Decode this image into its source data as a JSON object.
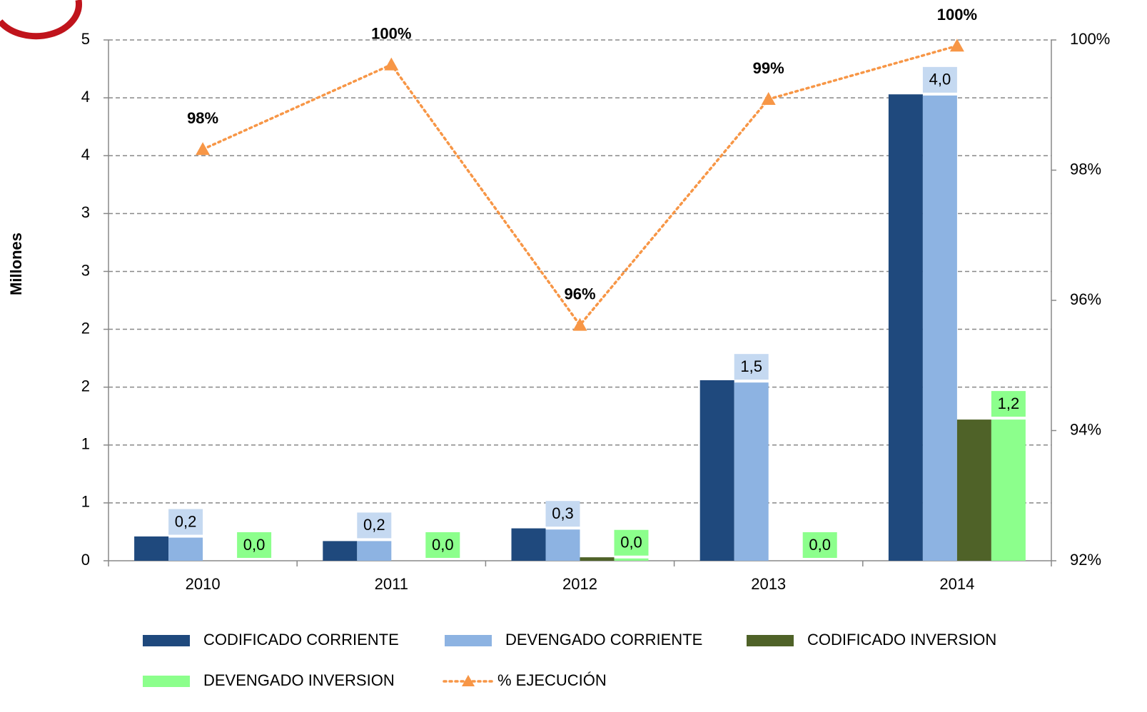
{
  "chart_data": {
    "type": "bar",
    "y_label": "Millones",
    "categories": [
      "2010",
      "2011",
      "2012",
      "2013",
      "2014"
    ],
    "series": [
      {
        "name": "CODIFICADO CORRIENTE",
        "color": "#1f497d",
        "values": [
          0.21,
          0.17,
          0.28,
          1.56,
          4.03
        ]
      },
      {
        "name": "DEVENGADO CORRIENTE",
        "color": "#8db3e2",
        "values": [
          0.2,
          0.17,
          0.27,
          1.54,
          4.02
        ],
        "value_labels": [
          "0,2",
          "0,2",
          "0,3",
          "1,5",
          "4,0"
        ],
        "label_color": "#c5d9f1"
      },
      {
        "name": "CODIFICADO INVERSION",
        "color": "#4f6228",
        "values": [
          0,
          0,
          0.03,
          0,
          1.22
        ]
      },
      {
        "name": "DEVENGADO INVERSION",
        "color": "#8cff8c",
        "values": [
          0,
          0,
          0.02,
          0,
          1.22
        ],
        "value_labels": [
          "0,0",
          "0,0",
          "0,0",
          "0,0",
          "1,2"
        ],
        "label_color": "#8cff8c"
      },
      {
        "name": "% EJECUCIÓN",
        "type": "line",
        "axis": "y2",
        "color": "#f79646",
        "values": [
          98.32,
          99.62,
          95.62,
          99.09,
          99.91
        ],
        "value_labels": [
          "98%",
          "100%",
          "96%",
          "99%",
          "100%"
        ]
      }
    ],
    "ylim": [
      0,
      4.5
    ],
    "yticks": [
      0,
      {
        "value": 0.5,
        "label": "1"
      },
      1,
      {
        "value": 1.5,
        "label": "2"
      },
      2,
      {
        "value": 2.5,
        "label": "3"
      },
      3,
      {
        "value": 3.5,
        "label": "4"
      },
      4,
      {
        "value": 4.5,
        "label": "5"
      }
    ],
    "y2lim": [
      92,
      100
    ],
    "y2ticks": [
      {
        "value": 92,
        "label": "92%"
      },
      {
        "value": 94,
        "label": "94%"
      },
      {
        "value": 96,
        "label": "96%"
      },
      {
        "value": 98,
        "label": "98%"
      },
      {
        "value": 100,
        "label": "100%"
      }
    ],
    "grid": true
  }
}
